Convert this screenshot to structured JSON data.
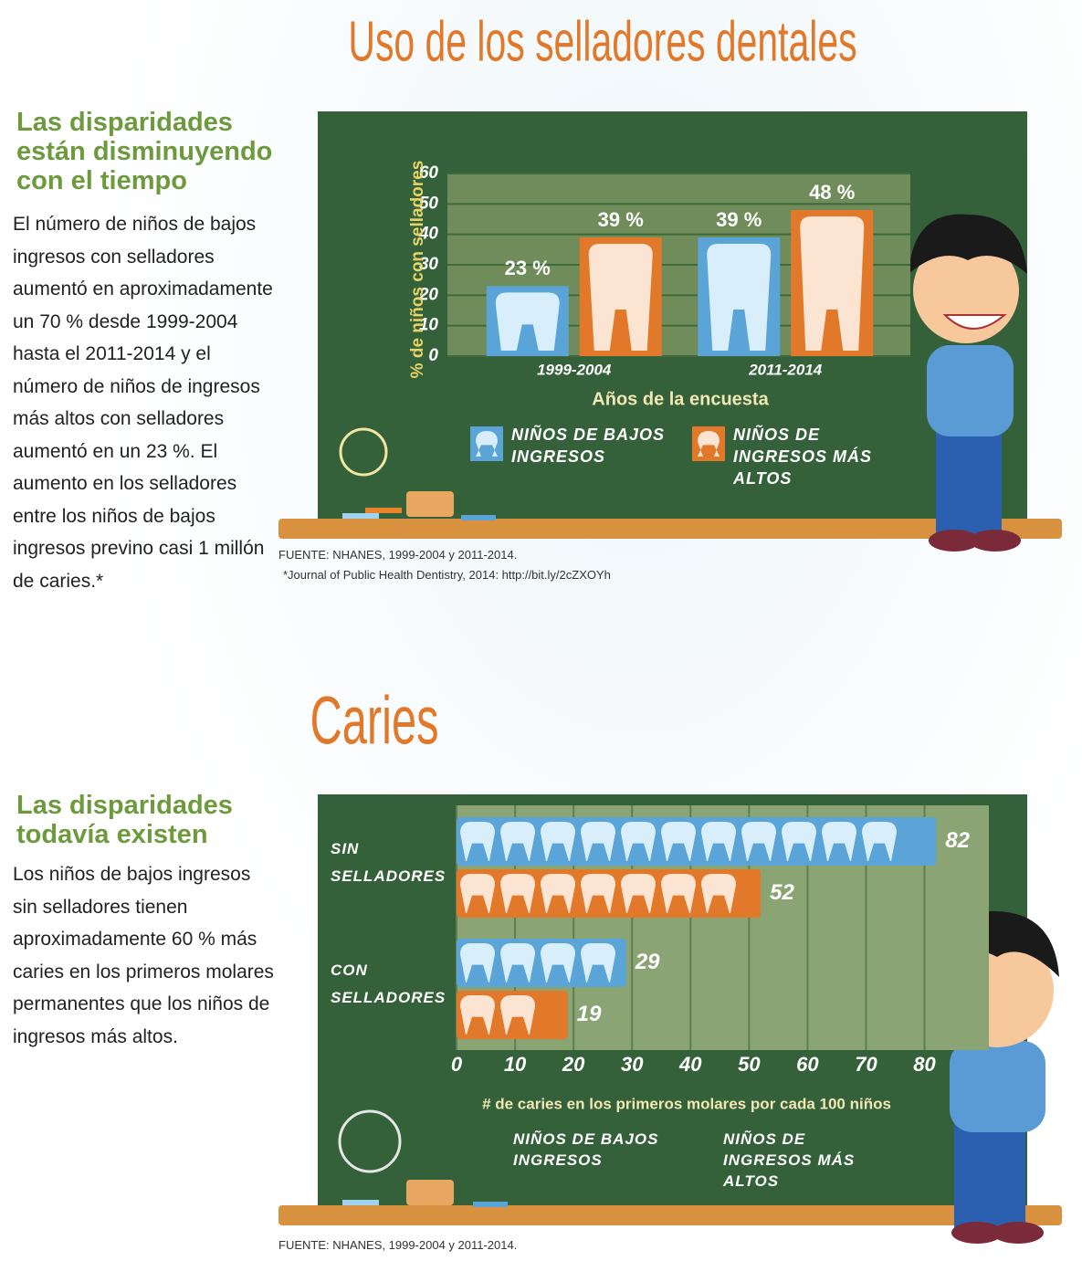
{
  "chart_data": [
    {
      "type": "bar",
      "title": "Uso de los selladores dentales",
      "subtitle": "Las disparidades están disminuyendo con el tiempo",
      "text": "El número de niños de bajos ingresos con selladores aumentó en aproximadamente un 70 % desde 1999-2004 hasta el 2011-2014 y el número de niños de ingresos más altos con selladores aumentó en un 23 %. El aumento en los selladores entre los niños de bajos ingresos previno casi 1 millón de caries.*",
      "ylabel": "% de niños con selladores",
      "xlabel": "Años de la encuesta",
      "categories": [
        "1999-2004",
        "2011-2014"
      ],
      "series": [
        {
          "name": "NIÑOS DE BAJOS INGRESOS",
          "color": "#5ba4d8",
          "values": [
            23,
            39
          ],
          "value_labels": [
            "23 %",
            "39 %"
          ]
        },
        {
          "name": "NIÑOS DE INGRESOS MÁS ALTOS",
          "color": "#e2792a",
          "values": [
            39,
            48
          ],
          "value_labels": [
            "39 %",
            "48 %"
          ]
        }
      ],
      "ylim": [
        0,
        60
      ],
      "yticks": [
        0,
        10,
        20,
        30,
        40,
        50,
        60
      ],
      "grid": true,
      "source": "FUENTE: NHANES, 1999-2004 y 2011-2014.",
      "note": "*Journal of Public Health Dentistry, 2014: http://bit.ly/2cZXOYh"
    },
    {
      "type": "hbar",
      "title": "Caries",
      "subtitle": "Las disparidades todavía existen",
      "text": "Los niños de bajos ingresos sin selladores tienen aproximadamente 60 % más caries en los primeros molares permanentes que los niños de ingresos más altos.",
      "xlabel": "# de caries en los primeros molares por cada 100 niños",
      "categories": [
        "SIN SELLADORES",
        "CON SELLADORES"
      ],
      "series": [
        {
          "name": "NIÑOS DE BAJOS INGRESOS",
          "color": "#5ba4d8",
          "values": [
            82,
            29
          ]
        },
        {
          "name": "NIÑOS DE INGRESOS MÁS ALTOS",
          "color": "#e2792a",
          "values": [
            52,
            19
          ]
        }
      ],
      "xlim": [
        0,
        91
      ],
      "xticks": [
        0,
        10,
        20,
        30,
        40,
        50,
        60,
        70,
        80
      ],
      "grid": true,
      "source": "FUENTE: NHANES, 1999-2004 y 2011-2014."
    }
  ]
}
